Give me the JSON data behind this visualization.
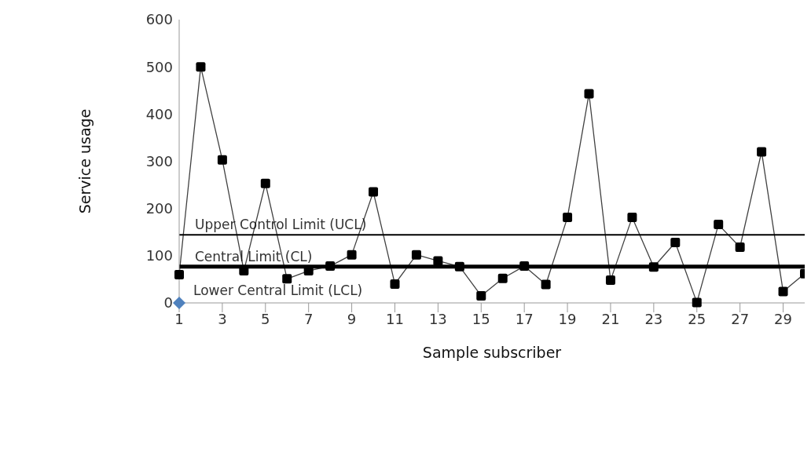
{
  "chart_data": {
    "type": "line",
    "xlabel": "Sample subscriber",
    "ylabel": "Service usage",
    "x": [
      1,
      2,
      3,
      4,
      5,
      6,
      7,
      8,
      9,
      10,
      11,
      12,
      13,
      14,
      15,
      16,
      17,
      18,
      19,
      20,
      21,
      22,
      23,
      24,
      25,
      26,
      27,
      28,
      29,
      30
    ],
    "series": [
      {
        "color": "#000000",
        "marker": "square",
        "values": [
          60,
          500,
          303,
          68,
          253,
          51,
          68,
          78,
          102,
          235,
          40,
          102,
          89,
          77,
          15,
          52,
          78,
          39,
          181,
          443,
          48,
          181,
          76,
          128,
          1,
          166,
          118,
          320,
          24,
          62
        ]
      },
      {
        "type": "scatter",
        "name": "Lower Central Limit (LCL)",
        "color": "#4f81bd",
        "marker": "diamond",
        "x": [
          1
        ],
        "values": [
          0
        ]
      }
    ],
    "xlim": [
      1,
      30
    ],
    "xticks": [
      1,
      3,
      5,
      7,
      9,
      11,
      13,
      15,
      17,
      19,
      21,
      23,
      25,
      27,
      29
    ],
    "ylim": [
      0,
      600
    ],
    "yticks": [
      0,
      100,
      200,
      300,
      400,
      500,
      600
    ],
    "ref_lines": [
      {
        "axis": "y",
        "value": 144,
        "label": "Upper Control Limit (UCL)",
        "color": "#000000"
      },
      {
        "axis": "y",
        "value": 77,
        "label": "Central Limit (CL)",
        "color": "#000000"
      }
    ],
    "grid": false,
    "legend": false
  }
}
